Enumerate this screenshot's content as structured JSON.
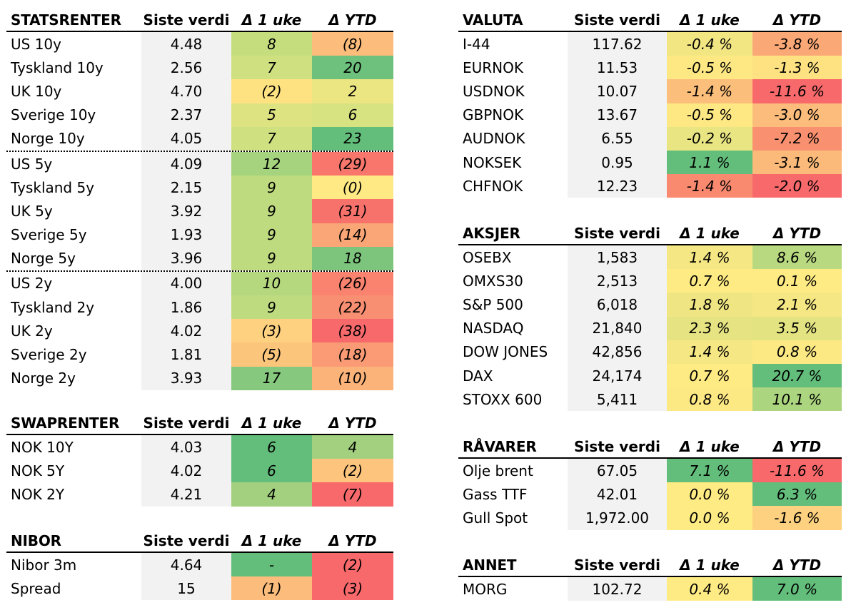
{
  "colors": {
    "value_bg": "#f2f2f2",
    "red": "#f8696b",
    "orange": "#fba276",
    "yellow": "#ffeb84",
    "green": "#63be7b"
  },
  "tables": {
    "statsrenter": {
      "headers": [
        "STATSRENTER",
        "Siste verdi",
        "Δ 1 uke",
        "Δ YTD"
      ],
      "rows": [
        {
          "name": "US 10y",
          "value": "4.48",
          "w": "8",
          "y": "(8)",
          "wc": "#c6dd7e",
          "yc": "#fcbc7b"
        },
        {
          "name": "Tyskland 10y",
          "value": "2.56",
          "w": "7",
          "y": "20",
          "wc": "#cfe080",
          "yc": "#6dc17c"
        },
        {
          "name": "UK 10y",
          "value": "4.70",
          "w": "(2)",
          "y": "2",
          "wc": "#fee282",
          "yc": "#ebe582"
        },
        {
          "name": "Sverige 10y",
          "value": "2.37",
          "w": "5",
          "y": "6",
          "wc": "#dde381",
          "yc": "#d7e281"
        },
        {
          "name": "Norge 10y",
          "value": "4.05",
          "w": "7",
          "y": "23",
          "wc": "#cfe080",
          "yc": "#63be7b",
          "sep": true
        },
        {
          "name": "US 5y",
          "value": "4.09",
          "w": "12",
          "y": "(29)",
          "wc": "#a6d47e",
          "yc": "#f8766c"
        },
        {
          "name": "Tyskland 5y",
          "value": "2.15",
          "w": "9",
          "y": "(0)",
          "wc": "#bfdb7f",
          "yc": "#ffe984"
        },
        {
          "name": "UK 5y",
          "value": "3.92",
          "w": "9",
          "y": "(31)",
          "wc": "#bfdb7f",
          "yc": "#f8726c"
        },
        {
          "name": "Sverige 5y",
          "value": "1.93",
          "w": "9",
          "y": "(14)",
          "wc": "#bfdb7f",
          "yc": "#fba677"
        },
        {
          "name": "Norge 5y",
          "value": "3.96",
          "w": "9",
          "y": "18",
          "wc": "#bfdb7f",
          "yc": "#7dc57d",
          "sep": true
        },
        {
          "name": "US 2y",
          "value": "4.00",
          "w": "10",
          "y": "(26)",
          "wc": "#b5d87f",
          "yc": "#f9836f"
        },
        {
          "name": "Tyskland 2y",
          "value": "1.86",
          "w": "9",
          "y": "(22)",
          "wc": "#bfdb7f",
          "yc": "#f98f72"
        },
        {
          "name": "UK 2y",
          "value": "4.02",
          "w": "(3)",
          "y": "(38)",
          "wc": "#fdd17f",
          "yc": "#f8696b"
        },
        {
          "name": "Sverige 2y",
          "value": "1.81",
          "w": "(5)",
          "y": "(18)",
          "wc": "#fcc57c",
          "yc": "#fa9b75"
        },
        {
          "name": "Norge 2y",
          "value": "3.93",
          "w": "17",
          "y": "(10)",
          "wc": "#86c87d",
          "yc": "#fcb379"
        }
      ]
    },
    "swaprenter": {
      "headers": [
        "SWAPRENTER",
        "Siste verdi",
        "Δ 1 uke",
        "Δ YTD"
      ],
      "rows": [
        {
          "name": "NOK 10Y",
          "value": "4.03",
          "w": "6",
          "y": "4",
          "wc": "#63be7b",
          "yc": "#a2d07e"
        },
        {
          "name": "NOK 5Y",
          "value": "4.02",
          "w": "6",
          "y": "(2)",
          "wc": "#63be7b",
          "yc": "#fdc47d"
        },
        {
          "name": "NOK 2Y",
          "value": "4.21",
          "w": "4",
          "y": "(7)",
          "wc": "#a2d07e",
          "yc": "#f8696b"
        }
      ]
    },
    "nibor": {
      "headers": [
        "NIBOR",
        "Siste verdi",
        "Δ 1 uke",
        "Δ YTD"
      ],
      "rows": [
        {
          "name": "Nibor 3m",
          "value": "4.64",
          "w": "-",
          "y": "(2)",
          "wc": "#63be7b",
          "yc": "#f8696b"
        },
        {
          "name": "Spread",
          "value": "15",
          "w": "(1)",
          "y": "(3)",
          "wc": "#fcbc7b",
          "yc": "#f8696b"
        }
      ]
    },
    "valuta": {
      "headers": [
        "VALUTA",
        "Siste verdi",
        "Δ 1 uke",
        "Δ YTD"
      ],
      "rows": [
        {
          "name": "I-44",
          "value": "117.62",
          "w": "-0.4 %",
          "y": "-3.8 %",
          "wc": "#f2e683",
          "yc": "#fba877"
        },
        {
          "name": "EURNOK",
          "value": "11.53",
          "w": "-0.5 %",
          "y": "-1.3 %",
          "wc": "#fde884",
          "yc": "#fee282"
        },
        {
          "name": "USDNOK",
          "value": "10.07",
          "w": "-1.4 %",
          "y": "-11.6 %",
          "wc": "#fcbf7b",
          "yc": "#f8696b"
        },
        {
          "name": "GBPNOK",
          "value": "13.67",
          "w": "-0.5 %",
          "y": "-3.0 %",
          "wc": "#fde884",
          "yc": "#fcbc7b"
        },
        {
          "name": "AUDNOK",
          "value": "6.55",
          "w": "-0.2 %",
          "y": "-7.2 %",
          "wc": "#e8e582",
          "yc": "#f9906f"
        },
        {
          "name": "NOKSEK",
          "value": "0.95",
          "w": "1.1 %",
          "y": "-3.1 %",
          "wc": "#63be7b",
          "yc": "#fcba7a"
        },
        {
          "name": "CHFNOK",
          "value": "12.23",
          "w": "-1.4 %",
          "y": "-2.0 %",
          "wc": "#f98a70",
          "yc": "#f8696b"
        }
      ]
    },
    "aksjer": {
      "headers": [
        "AKSJER",
        "Siste verdi",
        "Δ 1 uke",
        "Δ YTD"
      ],
      "rows": [
        {
          "name": "OSEBX",
          "value": "1,583",
          "w": "1.4 %",
          "y": "8.6 %",
          "wc": "#f5e783",
          "yc": "#b8d980"
        },
        {
          "name": "OMXS30",
          "value": "2,513",
          "w": "0.7 %",
          "y": "0.1 %",
          "wc": "#ffeb84",
          "yc": "#ffeb84"
        },
        {
          "name": "S&P 500",
          "value": "6,018",
          "w": "1.8 %",
          "y": "2.1 %",
          "wc": "#efe683",
          "yc": "#f5e783"
        },
        {
          "name": "NASDAQ",
          "value": "21,840",
          "w": "2.3 %",
          "y": "3.5 %",
          "wc": "#e6e482",
          "yc": "#e3e382"
        },
        {
          "name": "DOW JONES",
          "value": "42,856",
          "w": "1.4 %",
          "y": "0.8 %",
          "wc": "#f5e783",
          "yc": "#fce984"
        },
        {
          "name": "DAX",
          "value": "24,174",
          "w": "0.7 %",
          "y": "20.7 %",
          "wc": "#ffeb84",
          "yc": "#63be7b"
        },
        {
          "name": "STOXX 600",
          "value": "5,411",
          "w": "0.8 %",
          "y": "10.1 %",
          "wc": "#fde984",
          "yc": "#acd57f"
        }
      ]
    },
    "ravarer": {
      "headers": [
        "RÅVARER",
        "Siste verdi",
        "Δ 1 uke",
        "Δ YTD"
      ],
      "rows": [
        {
          "name": "Olje brent",
          "value": "67.05",
          "w": "7.1 %",
          "y": "-11.6 %",
          "wc": "#63be7b",
          "yc": "#f8696b"
        },
        {
          "name": "Gass TTF",
          "value": "42.01",
          "w": "0.0 %",
          "y": "6.3 %",
          "wc": "#ffeb84",
          "yc": "#63be7b"
        },
        {
          "name": "Gull Spot",
          "value": "1,972.00",
          "w": "0.0 %",
          "y": "-1.6 %",
          "wc": "#ffeb84",
          "yc": "#fdd17f"
        }
      ]
    },
    "annet": {
      "headers": [
        "ANNET",
        "Siste verdi",
        "Δ 1 uke",
        "Δ YTD"
      ],
      "rows": [
        {
          "name": "MORG",
          "value": "102.72",
          "w": "0.4 %",
          "y": "7.0 %",
          "wc": "#ffeb84",
          "yc": "#63be7b"
        }
      ]
    }
  }
}
